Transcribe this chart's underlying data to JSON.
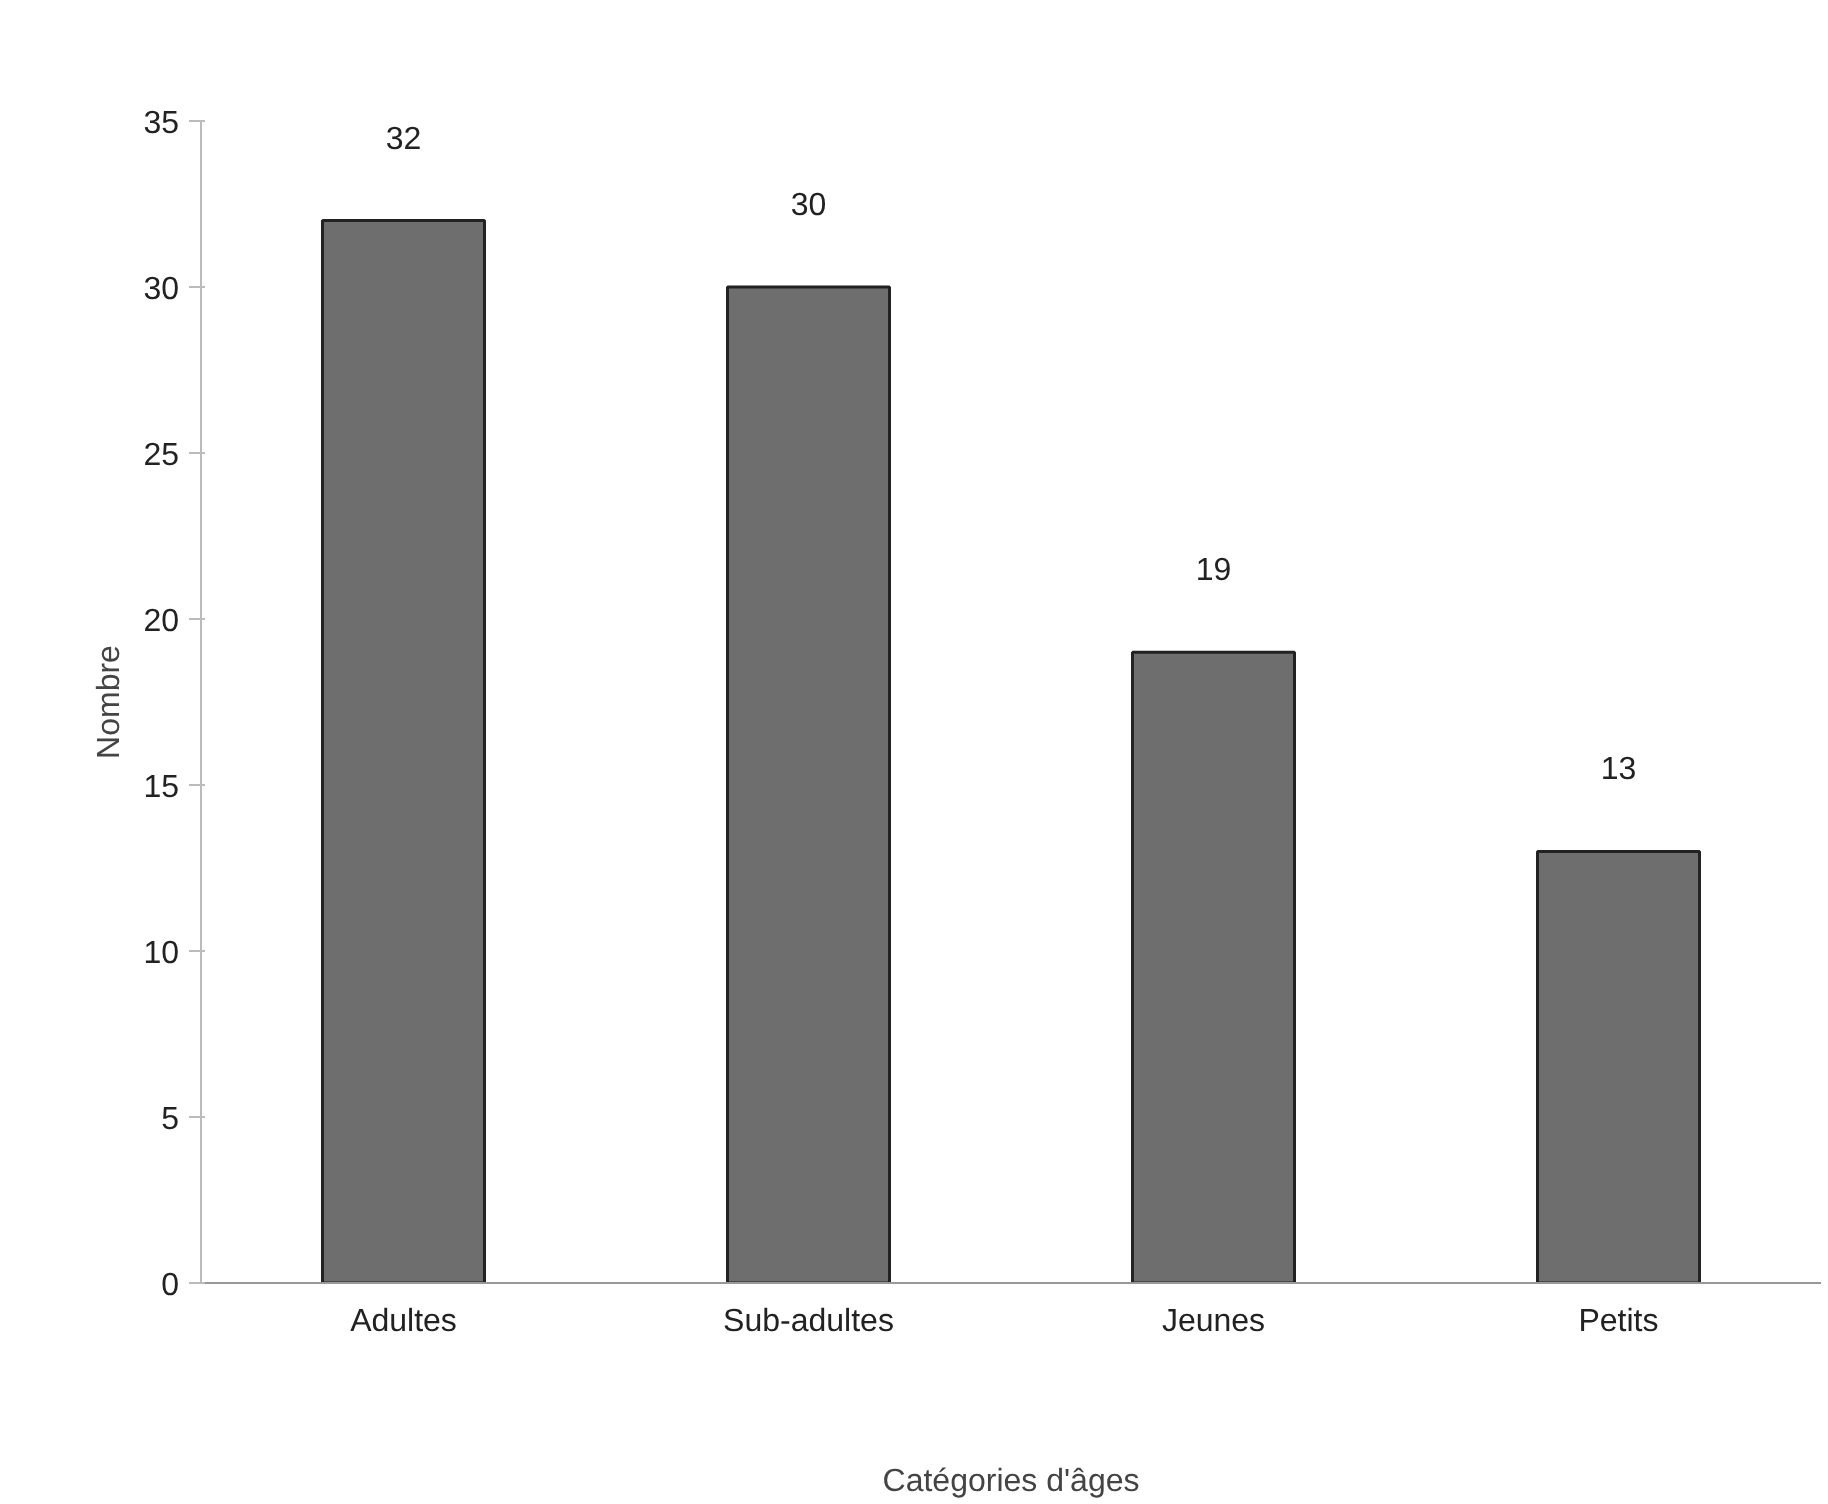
{
  "chart_data": {
    "type": "bar",
    "xlabel": "Catégories d'âges",
    "ylabel": "Nombre",
    "categories": [
      "Adultes",
      "Sub-adultes",
      "Jeunes",
      "Petits"
    ],
    "values": [
      32,
      30,
      19,
      13
    ],
    "color": "#6e6e6e",
    "ylim": [
      0,
      35
    ],
    "yticks": [
      0,
      5,
      10,
      15,
      20,
      25,
      30,
      35
    ],
    "data_labels": true
  }
}
